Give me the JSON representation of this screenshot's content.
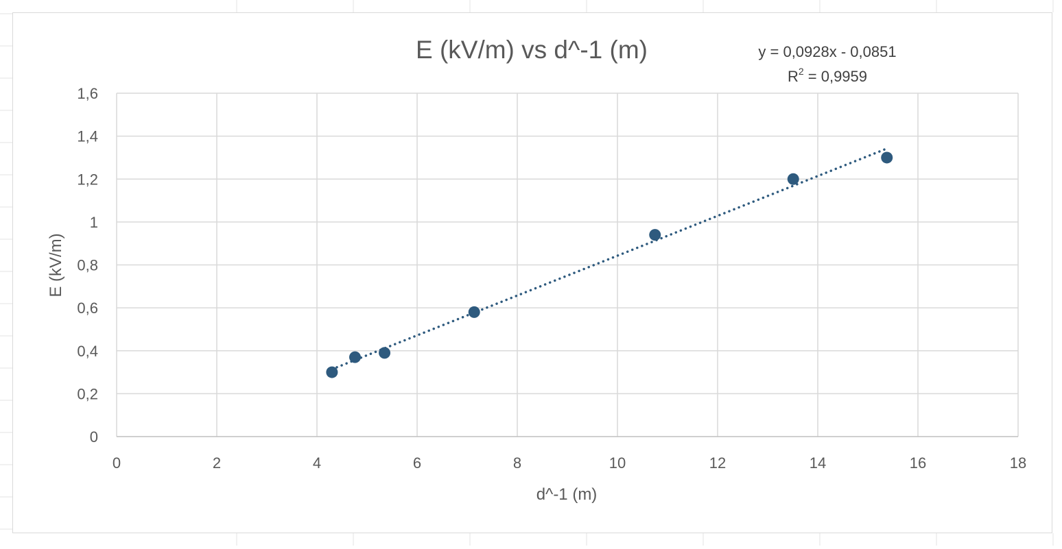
{
  "chart_data": {
    "type": "scatter",
    "title": "E (kV/m) vs d^-1 (m)",
    "xlabel": "d^-1 (m)",
    "ylabel": "E (kV/m)",
    "xlim": [
      0,
      18
    ],
    "ylim": [
      0,
      1.6
    ],
    "xticks": [
      0,
      2,
      4,
      6,
      8,
      10,
      12,
      14,
      16,
      18
    ],
    "xtick_labels": [
      "0",
      "2",
      "4",
      "6",
      "8",
      "10",
      "12",
      "14",
      "16",
      "18"
    ],
    "yticks": [
      0,
      0.2,
      0.4,
      0.6,
      0.8,
      1.0,
      1.2,
      1.4,
      1.6
    ],
    "ytick_labels": [
      "0",
      "0,2",
      "0,4",
      "0,6",
      "0,8",
      "1",
      "1,2",
      "1,4",
      "1,6"
    ],
    "grid": true,
    "legend": "none",
    "series": [
      {
        "x": [
          4.3,
          4.76,
          5.35,
          7.14,
          10.75,
          13.51,
          15.38
        ],
        "y": [
          0.3,
          0.37,
          0.39,
          0.58,
          0.94,
          1.2,
          1.3
        ],
        "color": "#2e5a7e"
      }
    ],
    "trendline": {
      "type": "linear",
      "style": "dotted",
      "slope": 0.0928,
      "intercept": -0.0851,
      "x_range": [
        4.3,
        15.38
      ],
      "color": "#2e5a7e",
      "equation": "y = 0,0928x - 0,0851",
      "r2_prefix": "R",
      "r2_sup": "2",
      "r2_value": " = 0,9959"
    }
  }
}
